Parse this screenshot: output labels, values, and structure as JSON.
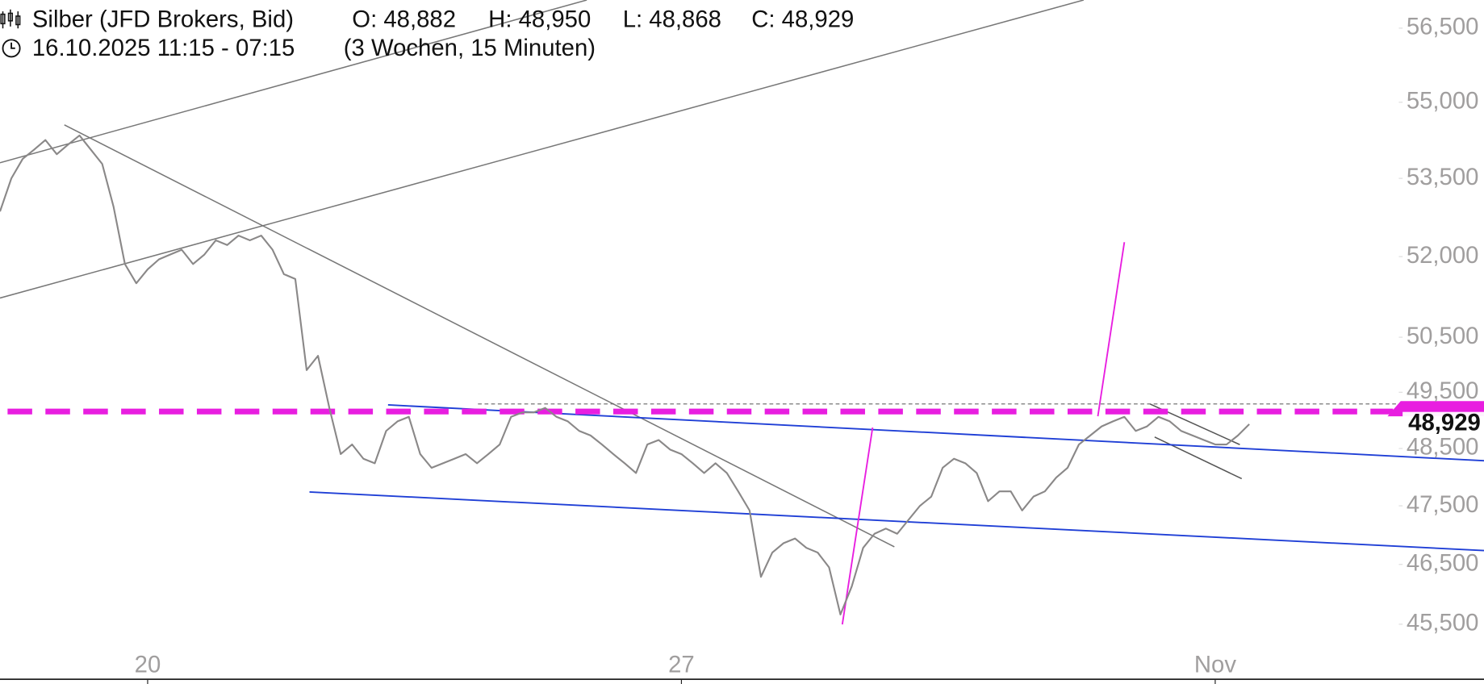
{
  "chart_data": {
    "type": "line",
    "title": "Silber (JFD Brokers, Bid)",
    "ohlc": [
      "O: 48,882",
      "H: 48,950",
      "L: 48,868",
      "C: 48,929"
    ],
    "subtitle": "16.10.2025 11:15 - 07:15",
    "period": "(3 Wochen, 15 Minuten)",
    "log": true,
    "color": "#8a8888",
    "ylim": [
      44600,
      57080
    ],
    "yticks": [
      {
        "value": 56500,
        "label": "56,500"
      },
      {
        "value": 55000,
        "label": "55,000"
      },
      {
        "value": 53500,
        "label": "53,500"
      },
      {
        "value": 52000,
        "label": "52,000"
      },
      {
        "value": 50500,
        "label": "50,500"
      },
      {
        "value": 49500,
        "label": "49,500"
      },
      {
        "value": 48500,
        "label": "48,500"
      },
      {
        "value": 47500,
        "label": "47,500"
      },
      {
        "value": 46500,
        "label": "46,500"
      },
      {
        "value": 45500,
        "label": "45,500"
      }
    ],
    "price_label": {
      "value": 48929,
      "label": "48,929"
    },
    "categories": [
      null,
      null,
      null,
      null,
      null,
      null,
      null,
      null,
      null,
      null,
      null,
      null,
      null,
      "20",
      null,
      null,
      null,
      null,
      null,
      null,
      null,
      null,
      null,
      null,
      null,
      null,
      null,
      null,
      null,
      null,
      null,
      null,
      null,
      null,
      null,
      null,
      null,
      null,
      null,
      null,
      null,
      null,
      null,
      null,
      null,
      null,
      null,
      null,
      null,
      null,
      null,
      null,
      null,
      null,
      null,
      null,
      null,
      null,
      null,
      null,
      "27",
      null,
      null,
      null,
      null,
      null,
      null,
      null,
      null,
      null,
      null,
      null,
      null,
      null,
      null,
      null,
      null,
      null,
      null,
      null,
      null,
      null,
      null,
      null,
      null,
      null,
      null,
      null,
      null,
      null,
      null,
      null,
      null,
      null,
      null,
      null,
      null,
      null,
      null,
      null,
      null,
      null,
      null,
      null,
      null,
      null,
      null,
      "Nov",
      null,
      null,
      null
    ],
    "values": [
      52860,
      53500,
      53880,
      54060,
      54250,
      53970,
      54160,
      54340,
      54060,
      53780,
      52950,
      51860,
      51500,
      51760,
      51950,
      52040,
      52130,
      51860,
      52040,
      52310,
      52220,
      52400,
      52310,
      52400,
      52130,
      51670,
      51580,
      49900,
      50160,
      49220,
      48400,
      48570,
      48320,
      48240,
      48810,
      48980,
      49060,
      48400,
      48160,
      48240,
      48320,
      48400,
      48240,
      48400,
      48570,
      49060,
      49140,
      49140,
      49220,
      49060,
      48980,
      48810,
      48730,
      48570,
      48400,
      48240,
      48070,
      48570,
      48650,
      48480,
      48400,
      48240,
      48070,
      48240,
      48070,
      47750,
      47420,
      46290,
      46700,
      46860,
      46940,
      46780,
      46700,
      46450,
      45660,
      46130,
      46780,
      47020,
      47110,
      47020,
      47260,
      47500,
      47660,
      48160,
      48320,
      48240,
      48070,
      47580,
      47750,
      47750,
      47420,
      47660,
      47750,
      47990,
      48160,
      48570,
      48730,
      48890,
      48980,
      49060,
      48810,
      48890,
      49060,
      48980,
      48810,
      48730,
      48650,
      48570,
      48570,
      48730,
      48929
    ]
  }
}
